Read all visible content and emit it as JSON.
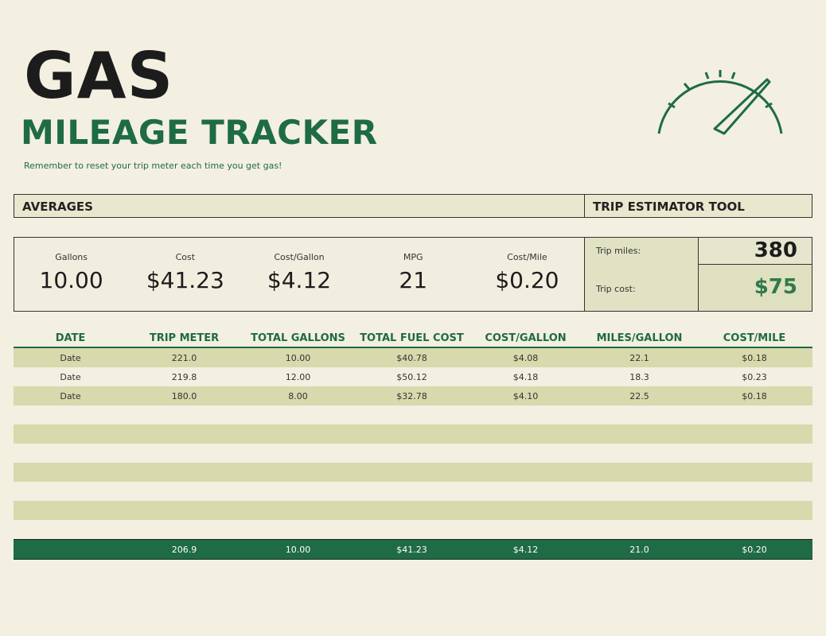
{
  "header": {
    "title": "GAS",
    "subtitle": "MILEAGE TRACKER",
    "reminder": "Remember to reset your trip meter each time you get gas!"
  },
  "sections": {
    "averages": "AVERAGES",
    "trip_tool": "TRIP ESTIMATOR TOOL"
  },
  "averages": [
    {
      "label": "Gallons",
      "value": "10.00"
    },
    {
      "label": "Cost",
      "value": "$41.23"
    },
    {
      "label": "Cost/Gallon",
      "value": "$4.12"
    },
    {
      "label": "MPG",
      "value": "21"
    },
    {
      "label": "Cost/Mile",
      "value": "$0.20"
    }
  ],
  "trip": {
    "miles_label": "Trip miles:",
    "miles_value": "380",
    "cost_label": "Trip cost:",
    "cost_value": "$75"
  },
  "table": {
    "columns": [
      "DATE",
      "TRIP METER",
      "TOTAL GALLONS",
      "TOTAL FUEL COST",
      "COST/GALLON",
      "MILES/GALLON",
      "COST/MILE"
    ],
    "rows": [
      [
        "Date",
        "221.0",
        "10.00",
        "$40.78",
        "$4.08",
        "22.1",
        "$0.18"
      ],
      [
        "Date",
        "219.8",
        "12.00",
        "$50.12",
        "$4.18",
        "18.3",
        "$0.23"
      ],
      [
        "Date",
        "180.0",
        "8.00",
        "$32.78",
        "$4.10",
        "22.5",
        "$0.18"
      ]
    ],
    "totals": [
      "",
      "206.9",
      "10.00",
      "$41.23",
      "$4.12",
      "21.0",
      "$0.20"
    ]
  },
  "icons": {
    "gauge": "speedometer-icon"
  },
  "colors": {
    "accent": "#1e6b45",
    "band": "#d8d9ac",
    "background": "#f3efe1"
  }
}
